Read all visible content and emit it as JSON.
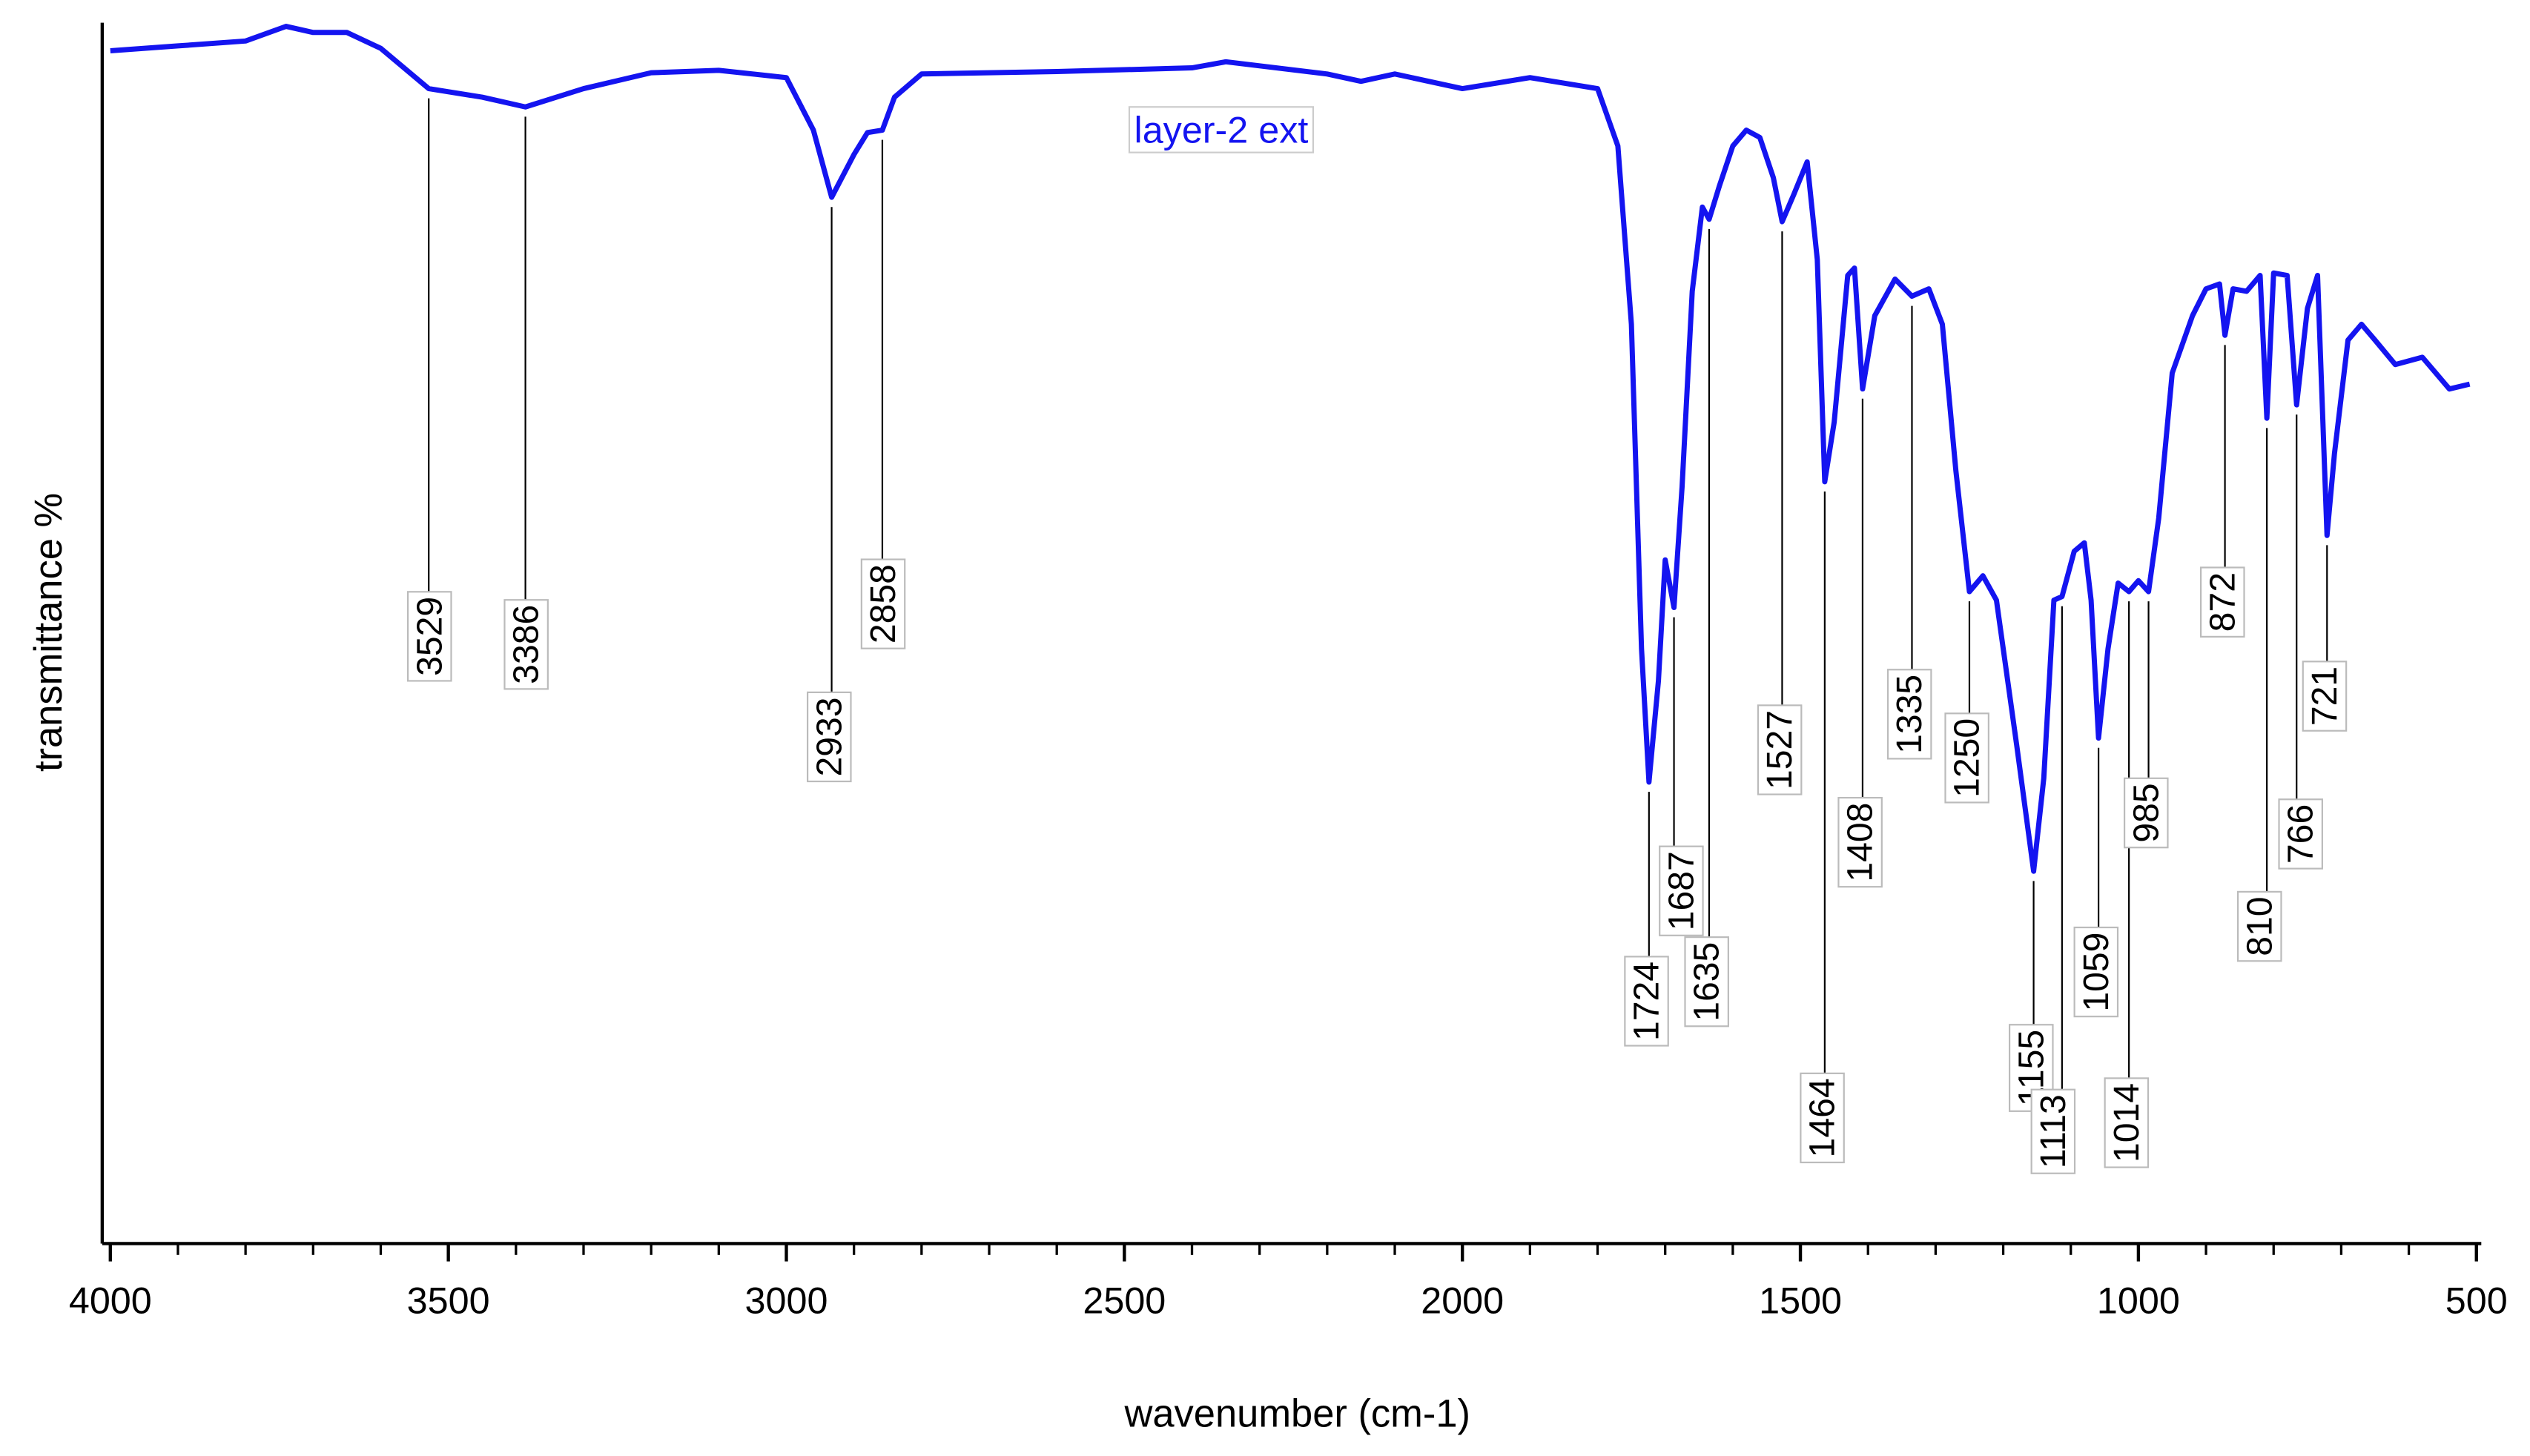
{
  "chart_data": {
    "type": "line",
    "xlabel": "wavenumber (cm-1)",
    "ylabel": "transmittance %",
    "xlim": [
      4000,
      500
    ],
    "xticks": [
      4000,
      3500,
      3000,
      2500,
      2000,
      1500,
      1000,
      500
    ],
    "xminorticks": [
      3900,
      3800,
      3700,
      3600,
      3400,
      3300,
      3200,
      3100,
      2900,
      2800,
      2700,
      2600,
      2400,
      2300,
      2200,
      2100,
      1900,
      1800,
      1700,
      1600,
      1400,
      1300,
      1200,
      1100,
      900,
      800,
      700,
      600
    ],
    "ylim": [
      0,
      100
    ],
    "x": [
      4000,
      3900,
      3800,
      3740,
      3700,
      3650,
      3600,
      3529,
      3450,
      3386,
      3300,
      3200,
      3100,
      3000,
      2960,
      2933,
      2900,
      2880,
      2858,
      2840,
      2800,
      2600,
      2400,
      2350,
      2200,
      2150,
      2100,
      2000,
      1900,
      1800,
      1770,
      1750,
      1735,
      1724,
      1710,
      1700,
      1687,
      1675,
      1660,
      1645,
      1635,
      1620,
      1600,
      1580,
      1560,
      1540,
      1527,
      1510,
      1490,
      1475,
      1464,
      1450,
      1430,
      1420,
      1408,
      1390,
      1360,
      1335,
      1310,
      1290,
      1270,
      1250,
      1230,
      1210,
      1180,
      1155,
      1140,
      1125,
      1113,
      1095,
      1080,
      1070,
      1059,
      1045,
      1030,
      1014,
      1000,
      985,
      970,
      950,
      920,
      900,
      880,
      872,
      860,
      840,
      820,
      810,
      800,
      780,
      766,
      750,
      735,
      721,
      710,
      690,
      670,
      650,
      620,
      580,
      560,
      540,
      510
    ],
    "series": [
      {
        "name": "layer-2 ext",
        "color": "#1414f0",
        "values": [
          97.7,
          98.1,
          98.5,
          99.7,
          99.2,
          99.2,
          97.9,
          94.6,
          93.9,
          93.1,
          94.6,
          95.9,
          96.1,
          95.5,
          91.2,
          85.7,
          89.2,
          91.0,
          91.2,
          93.9,
          95.8,
          96.0,
          96.3,
          96.8,
          95.8,
          95.2,
          95.8,
          94.6,
          95.5,
          94.6,
          89.9,
          75.3,
          48.7,
          37.8,
          46.1,
          56.0,
          52.1,
          62.0,
          78.0,
          84.9,
          83.9,
          86.6,
          89.9,
          91.2,
          90.6,
          87.3,
          83.7,
          85.9,
          88.6,
          80.6,
          62.4,
          67.3,
          79.3,
          79.9,
          70.0,
          76.0,
          79.0,
          77.6,
          78.2,
          75.3,
          63.3,
          53.4,
          54.7,
          52.7,
          40.8,
          30.5,
          38.1,
          52.7,
          53.0,
          56.7,
          57.4,
          52.7,
          41.4,
          48.7,
          54.1,
          53.4,
          54.3,
          53.4,
          59.4,
          71.3,
          76.0,
          78.2,
          78.6,
          74.4,
          78.2,
          78.0,
          79.3,
          67.6,
          79.5,
          79.3,
          68.7,
          76.6,
          79.3,
          58.0,
          64.7,
          74.0,
          75.3,
          74.0,
          72.0,
          72.6,
          71.3,
          70.0,
          70.4
        ]
      }
    ],
    "peak_labels": [
      3529,
      3386,
      2933,
      2858,
      1724,
      1687,
      1635,
      1527,
      1464,
      1408,
      1335,
      1250,
      1155,
      1113,
      1059,
      1014,
      985,
      872,
      810,
      766,
      721
    ]
  }
}
